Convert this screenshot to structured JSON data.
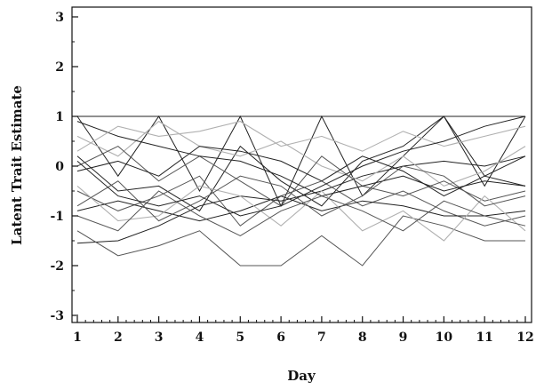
{
  "chart_data": {
    "type": "line",
    "title": "",
    "xlabel": "Day",
    "ylabel": "Latent Trait Estimate",
    "x": [
      1,
      2,
      3,
      4,
      5,
      6,
      7,
      8,
      9,
      10,
      11,
      12
    ],
    "xlim": [
      1,
      12
    ],
    "ylim": [
      -3,
      3
    ],
    "xticks": [
      "1",
      "2",
      "3",
      "4",
      "5",
      "6",
      "7",
      "8",
      "9",
      "10",
      "11",
      "12"
    ],
    "yticks": [
      "-3",
      "-2",
      "-1",
      "0",
      "1",
      "2",
      "3"
    ],
    "grid": false,
    "legend": "none",
    "colors": {
      "dark": "#222222",
      "mid": "#555555",
      "light": "#b0b0b0"
    },
    "series": [
      {
        "shade": "dark",
        "values": [
          1.0,
          1.0,
          1.0,
          1.0,
          1.0,
          1.0,
          1.0,
          1.0,
          1.0,
          1.0,
          1.0,
          1.0
        ]
      },
      {
        "shade": "dark",
        "values": [
          1.0,
          -0.2,
          1.0,
          -0.5,
          1.0,
          -0.8,
          1.0,
          -0.6,
          0.2,
          1.0,
          -0.4,
          1.0
        ]
      },
      {
        "shade": "dark",
        "values": [
          -1.55,
          -1.5,
          -1.2,
          -0.8,
          -0.6,
          -0.7,
          -0.5,
          -0.2,
          0.0,
          0.1,
          0.0,
          0.2
        ]
      },
      {
        "shade": "mid",
        "values": [
          -1.3,
          -1.8,
          -1.6,
          -1.3,
          -2.0,
          -2.0,
          -1.4,
          -2.0,
          -1.0,
          -1.2,
          -1.5,
          -1.5
        ]
      },
      {
        "shade": "dark",
        "values": [
          0.2,
          -0.5,
          -0.4,
          -0.9,
          0.4,
          -0.3,
          -0.8,
          0.1,
          0.4,
          1.0,
          -0.2,
          -0.4
        ]
      },
      {
        "shade": "mid",
        "values": [
          -0.5,
          -0.9,
          -0.6,
          -0.2,
          -1.2,
          -0.6,
          -0.3,
          -0.8,
          -0.5,
          -0.9,
          -1.2,
          -1.0
        ]
      },
      {
        "shade": "light",
        "values": [
          0.6,
          0.2,
          0.9,
          0.4,
          0.2,
          0.5,
          0.0,
          -0.3,
          0.2,
          -0.4,
          -0.1,
          0.4
        ]
      },
      {
        "shade": "dark",
        "values": [
          -0.9,
          -0.7,
          -0.9,
          -1.1,
          -0.9,
          -0.6,
          -0.9,
          -0.7,
          -0.8,
          -1.0,
          -1.0,
          -0.9
        ]
      },
      {
        "shade": "mid",
        "values": [
          0.0,
          0.4,
          -0.3,
          0.2,
          -0.3,
          -0.8,
          0.2,
          -0.4,
          -0.6,
          -0.3,
          -0.7,
          -0.5
        ]
      },
      {
        "shade": "light",
        "values": [
          -0.4,
          -1.1,
          -1.0,
          -0.4,
          -0.6,
          -1.2,
          -0.5,
          -1.3,
          -0.9,
          -1.5,
          -0.6,
          -1.3
        ]
      },
      {
        "shade": "dark",
        "values": [
          0.9,
          0.6,
          0.4,
          0.2,
          0.1,
          -0.2,
          -0.6,
          -0.4,
          -0.2,
          -0.5,
          -0.3,
          -0.4
        ]
      },
      {
        "shade": "mid",
        "values": [
          -0.8,
          -0.3,
          -1.1,
          -0.7,
          -0.2,
          -0.4,
          -1.0,
          -0.6,
          0.0,
          -0.2,
          -0.8,
          -0.6
        ]
      },
      {
        "shade": "light",
        "values": [
          0.3,
          0.8,
          0.6,
          0.7,
          0.9,
          0.4,
          0.6,
          0.3,
          0.7,
          0.4,
          0.6,
          0.8
        ]
      },
      {
        "shade": "dark",
        "values": [
          -0.1,
          0.1,
          -0.2,
          0.4,
          0.3,
          0.1,
          -0.3,
          0.2,
          -0.1,
          -0.6,
          -0.2,
          0.2
        ]
      },
      {
        "shade": "mid",
        "values": [
          -1.0,
          -1.3,
          -0.5,
          -1.0,
          -1.4,
          -0.9,
          -0.6,
          -0.9,
          -1.3,
          -0.7,
          -1.0,
          -1.2
        ]
      },
      {
        "shade": "dark",
        "values": [
          0.1,
          -0.6,
          -0.8,
          -0.6,
          -1.0,
          -0.8,
          -0.4,
          0.0,
          0.3,
          0.5,
          0.8,
          1.0
        ]
      }
    ]
  }
}
